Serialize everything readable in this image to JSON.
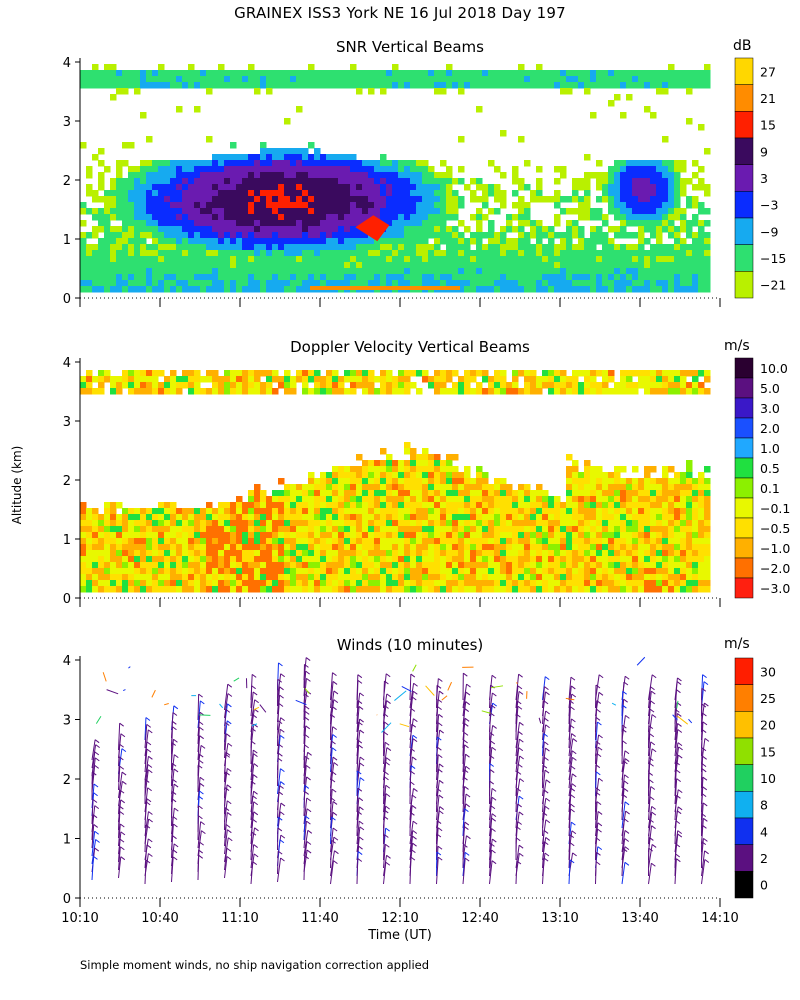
{
  "main_title": "GRAINEX ISS3 York NE  16 Jul 2018 Day 197",
  "y_axis_label": "Altitude (km)",
  "x_axis_label": "Time (UT)",
  "footnote": "Simple moment winds, no ship navigation correction applied",
  "time_ticks": [
    "10:10",
    "10:40",
    "11:10",
    "11:40",
    "12:10",
    "12:40",
    "13:10",
    "13:40",
    "14:10"
  ],
  "chart_data": [
    {
      "type": "heatmap",
      "title": "SNR Vertical Beams",
      "unit": "dB",
      "xlabel": "",
      "ylabel": "Altitude (km)",
      "x_range": [
        "10:10",
        "14:10"
      ],
      "ylim": [
        0,
        4
      ],
      "y_ticks": [
        "0",
        "1",
        "2",
        "3",
        "4"
      ],
      "colorbar_labels": [
        "27",
        "21",
        "15",
        "9",
        "3",
        "−3",
        "−9",
        "−15",
        "−21"
      ],
      "colorbar_colors": [
        "#ffd700",
        "#ff8c00",
        "#ff2000",
        "#3a0a5e",
        "#6a1bb0",
        "#0a2cff",
        "#16aaf0",
        "#2ee070",
        "#b9f000"
      ],
      "features": [
        {
          "time": "11:25",
          "altitude_km": 1.7,
          "snr_db": 9
        },
        {
          "time": "12:00",
          "altitude_km": 1.2,
          "snr_db": 15
        },
        {
          "time": "13:40",
          "altitude_km": 1.9,
          "snr_db": 3
        }
      ]
    },
    {
      "type": "heatmap",
      "title": "Doppler Velocity Vertical Beams",
      "unit": "m/s",
      "xlabel": "",
      "ylabel": "Altitude (km)",
      "x_range": [
        "10:10",
        "14:10"
      ],
      "ylim": [
        0,
        4
      ],
      "y_ticks": [
        "0",
        "1",
        "2",
        "3",
        "4"
      ],
      "colorbar_labels": [
        "10.0",
        "5.0",
        "3.0",
        "2.0",
        "1.0",
        "0.5",
        "0.1",
        "−0.1",
        "−0.5",
        "−1.0",
        "−2.0",
        "−3.0"
      ],
      "colorbar_colors": [
        "#2a0030",
        "#5b1080",
        "#3a18c8",
        "#1a50ff",
        "#20a8ff",
        "#20e040",
        "#8cf000",
        "#e8f800",
        "#ffe000",
        "#ffb000",
        "#ff7000",
        "#ff2010"
      ]
    },
    {
      "type": "scatter",
      "title": "Winds (10 minutes)",
      "unit": "m/s",
      "xlabel": "Time (UT)",
      "ylabel": "Altitude (km)",
      "x_range": [
        "10:10",
        "14:10"
      ],
      "ylim": [
        0,
        4
      ],
      "y_ticks": [
        "0",
        "1",
        "2",
        "3",
        "4"
      ],
      "colorbar_labels": [
        "30",
        "25",
        "20",
        "15",
        "10",
        "8",
        "4",
        "2",
        "0"
      ],
      "colorbar_colors": [
        "#ff1e00",
        "#ff7f00",
        "#ffc000",
        "#90e000",
        "#20d060",
        "#10b0f0",
        "#1030f0",
        "#5b1080",
        "#000000"
      ]
    }
  ]
}
